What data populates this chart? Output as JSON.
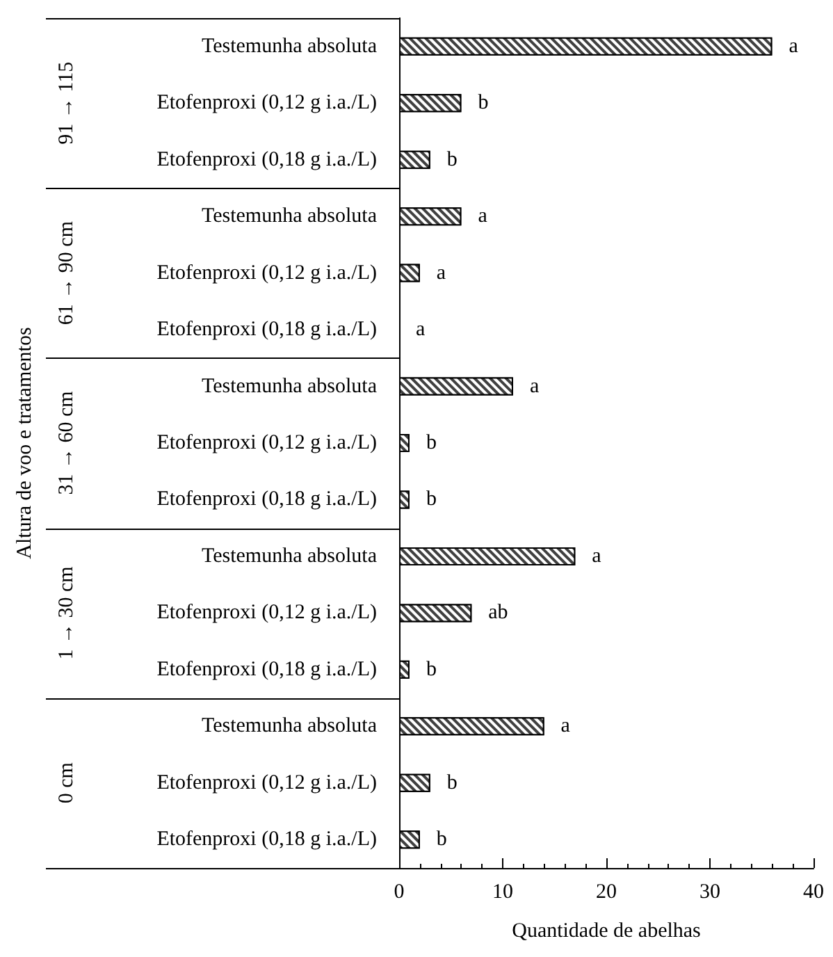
{
  "chart_data": {
    "type": "bar",
    "orientation": "horizontal",
    "xlabel": "Quantidade de abelhas",
    "categories": [
      "Testemunha absoluta",
      "Etofenproxi (0,12 g i.a./L)",
      "Etofenproxi (0,18 g i.a./L)",
      "Testemunha absoluta",
      "Etofenproxi (0,12 g i.a./L)",
      "Etofenproxi (0,18 g i.a./L)",
      "Testemunha absoluta",
      "Etofenproxi (0,12 g i.a./L)",
      "Etofenproxi (0,18 g i.a./L)",
      "Testemunha absoluta",
      "Etofenproxi (0,12 g i.a./L)",
      "Etofenproxi (0,18 g i.a./L)",
      "Testemunha absoluta",
      "Etofenproxi (0,12 g i.a./L)",
      "Etofenproxi (0,18 g i.a./L)"
    ],
    "values": [
      36,
      6,
      3,
      6,
      2,
      0,
      11,
      1,
      1,
      17,
      7,
      1,
      14,
      3,
      2
    ],
    "value_labels": [
      "a",
      "b",
      "b",
      "a",
      "a",
      "a",
      "a",
      "b",
      "b",
      "a",
      "ab",
      "b",
      "a",
      "b",
      "b"
    ],
    "color": "#404040",
    "annotations": [
      "Altura de voo e tratamentos",
      "91 → 115",
      "61 → 90 cm",
      "31 → 60 cm",
      "1 → 30 cm",
      "0 cm"
    ],
    "xlim": [
      0,
      40
    ],
    "xticks": [
      0,
      10,
      20,
      30,
      40
    ],
    "grid": false
  }
}
